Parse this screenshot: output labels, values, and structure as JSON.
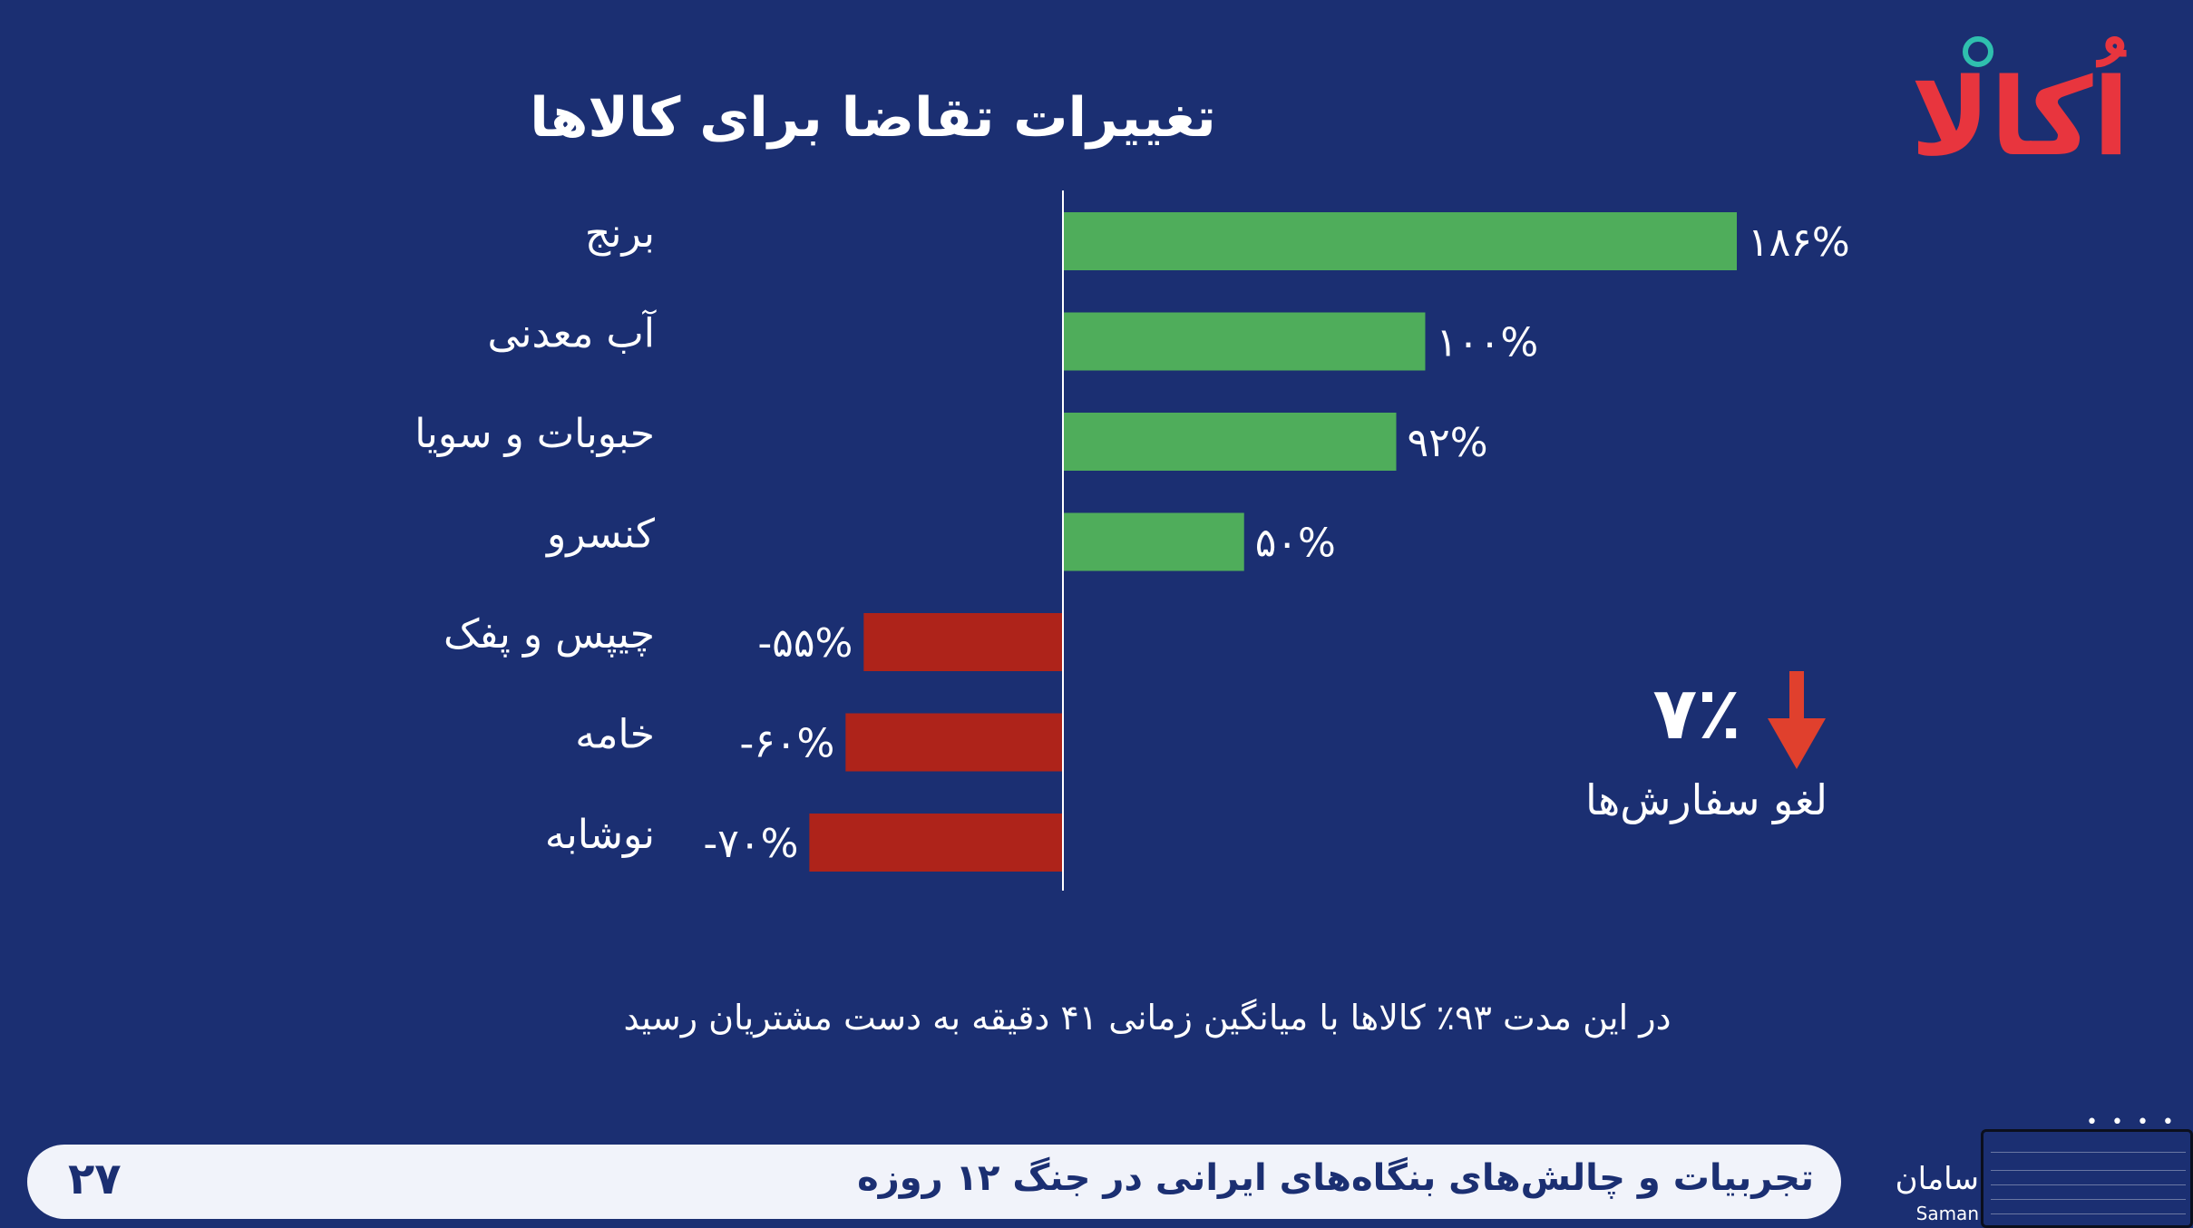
{
  "slide": {
    "title": "تغییرات  تقاضا برای کالاها",
    "logo_text": "اُکالا",
    "footnote": "در این مدت ۹۳٪ کالاها با میانگین زمانی ۴۱ دقیقه به دست مشتریان رسید",
    "cancellation": {
      "value": "۷٪",
      "label": "لغو سفارش‌ها",
      "color": "#e0402d"
    }
  },
  "footer": {
    "title": "تجربیات و چالش‌های بنگاه‌های ایرانی در جنگ ۱۲ روزه",
    "page_number": "۲۷",
    "brand_fa": "سامان",
    "brand_en": "Saman"
  },
  "colors": {
    "background": "#1b2f72",
    "positive": "#4fad5b",
    "negative": "#ae231a"
  },
  "chart_data": {
    "type": "bar",
    "orientation": "horizontal",
    "title": "تغییرات  تقاضا برای کالاها",
    "categories": [
      "برنج",
      "آب معدنی",
      "حبوبات و سویا",
      "کنسرو",
      "چیپس و پفک",
      "خامه",
      "نوشابه"
    ],
    "values": [
      186,
      100,
      92,
      50,
      -55,
      -60,
      -70
    ],
    "value_labels": [
      "۱۸۶%",
      "۱۰۰%",
      "۹۲%",
      "۵۰%",
      "-۵۵%",
      "-۶۰%",
      "-۷۰%"
    ],
    "unit": "%",
    "xlim": [
      -70,
      186
    ],
    "grid": false,
    "legend": "none"
  }
}
